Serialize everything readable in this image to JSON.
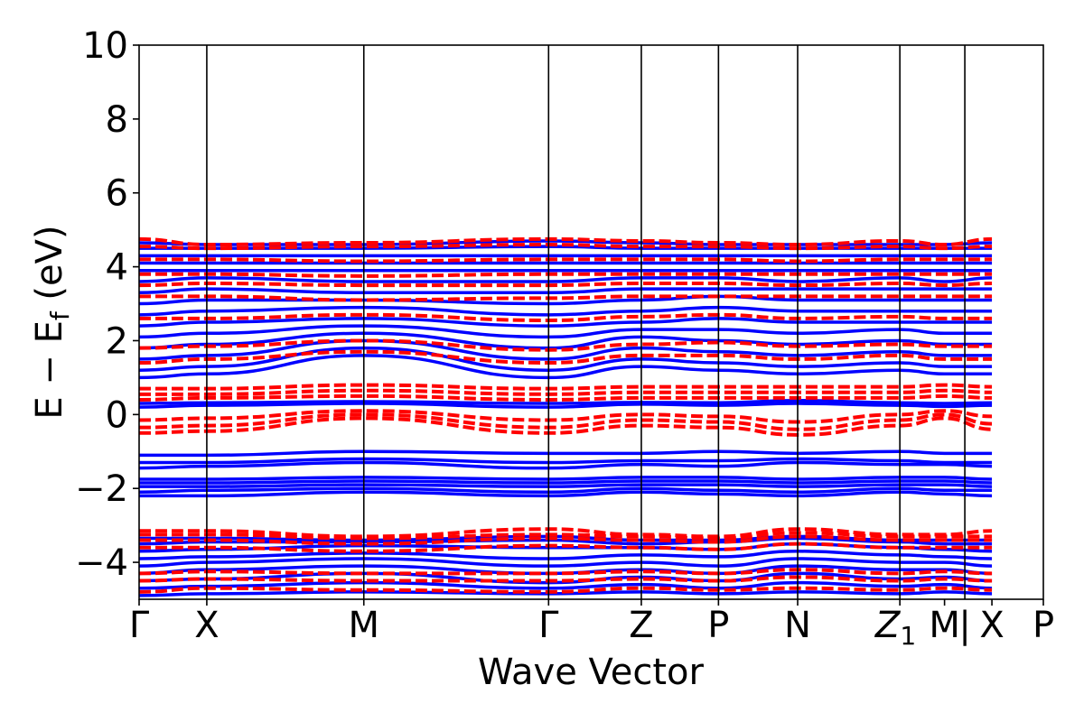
{
  "chart_data": {
    "type": "line",
    "xlabel": "Wave Vector",
    "ylabel": "E − E",
    "ylabel_sub": "f",
    "ylabel_unit": " (eV)",
    "ylim": [
      -5,
      10
    ],
    "y_ticks": [
      -4,
      -2,
      0,
      2,
      4,
      6,
      8,
      10
    ],
    "y_tick_labels": [
      "−4",
      "−2",
      "0",
      "2",
      "4",
      "6",
      "8",
      "10"
    ],
    "x_range": [
      0,
      13.36
    ],
    "k_points": [
      {
        "label": "Γ",
        "x": 0
      },
      {
        "label": "X",
        "x": 1
      },
      {
        "label": "M",
        "x": 3.32
      },
      {
        "label": "Γ",
        "x": 6.05
      },
      {
        "label": "Z",
        "x": 7.42
      },
      {
        "label": "P",
        "x": 8.56
      },
      {
        "label": "N",
        "x": 9.73
      },
      {
        "label": "Z",
        "x": 11.24,
        "sub": "1"
      },
      {
        "label": "M",
        "x": 11.9
      },
      {
        "label": "|",
        "x": 12.2
      },
      {
        "label": "X",
        "x": 12.6
      },
      {
        "label": "P",
        "x": 13.36
      }
    ],
    "vertical_lines_x": [
      1,
      3.32,
      6.05,
      7.42,
      8.56,
      9.73,
      11.24,
      12.2
    ],
    "series": [
      {
        "style": "solid",
        "color": "#0000ff",
        "bands": [
          [
            -4.9,
            -4.85,
            -4.8,
            -4.85,
            -4.8,
            -4.85,
            -4.8,
            -4.85,
            -4.8,
            -4.85
          ],
          [
            -4.7,
            -4.65,
            -4.55,
            -4.7,
            -4.6,
            -4.7,
            -4.55,
            -4.65,
            -4.6,
            -4.7
          ],
          [
            -4.5,
            -4.45,
            -4.3,
            -4.55,
            -4.4,
            -4.5,
            -4.3,
            -4.45,
            -4.4,
            -4.5
          ],
          [
            -4.3,
            -4.2,
            -4.1,
            -4.3,
            -4.2,
            -4.3,
            -4.1,
            -4.2,
            -4.2,
            -4.3
          ],
          [
            -4.1,
            -4.0,
            -3.9,
            -4.1,
            -4.0,
            -4.1,
            -3.9,
            -4.0,
            -4.0,
            -4.1
          ],
          [
            -3.9,
            -3.85,
            -3.75,
            -3.9,
            -3.8,
            -3.85,
            -3.7,
            -3.8,
            -3.85,
            -3.9
          ],
          [
            -3.7,
            -3.65,
            -3.55,
            -3.6,
            -3.6,
            -3.65,
            -3.5,
            -3.6,
            -3.65,
            -3.7
          ],
          [
            -3.5,
            -3.45,
            -3.45,
            -3.4,
            -3.5,
            -3.45,
            -3.35,
            -3.45,
            -3.5,
            -3.5
          ],
          [
            -3.35,
            -3.35,
            -3.4,
            -3.3,
            -3.4,
            -3.4,
            -3.3,
            -3.4,
            -3.4,
            -3.4
          ],
          [
            -2.2,
            -2.2,
            -2.1,
            -2.2,
            -2.1,
            -2.15,
            -2.2,
            -2.1,
            -2.15,
            -2.2
          ],
          [
            -2.1,
            -2.05,
            -2.0,
            -2.1,
            -2.0,
            -2.05,
            -2.1,
            -2.0,
            -2.05,
            -2.05
          ],
          [
            -1.95,
            -1.95,
            -1.9,
            -1.95,
            -1.9,
            -1.9,
            -1.95,
            -1.9,
            -1.9,
            -1.95
          ],
          [
            -1.85,
            -1.85,
            -1.8,
            -1.85,
            -1.8,
            -1.8,
            -1.85,
            -1.8,
            -1.8,
            -1.85
          ],
          [
            -1.75,
            -1.75,
            -1.7,
            -1.75,
            -1.7,
            -1.7,
            -1.75,
            -1.7,
            -1.7,
            -1.75
          ],
          [
            -1.45,
            -1.4,
            -1.3,
            -1.45,
            -1.35,
            -1.4,
            -1.3,
            -1.35,
            -1.35,
            -1.4
          ],
          [
            -1.3,
            -1.3,
            -1.2,
            -1.3,
            -1.25,
            -1.25,
            -1.2,
            -1.25,
            -1.3,
            -1.3
          ],
          [
            -1.1,
            -1.1,
            -1.0,
            -1.05,
            -1.05,
            -1.0,
            -1.05,
            -1.0,
            -1.05,
            -1.05
          ],
          [
            0.2,
            0.25,
            0.3,
            0.2,
            0.28,
            0.25,
            0.3,
            0.25,
            0.22,
            0.25
          ],
          [
            0.3,
            0.32,
            0.35,
            0.3,
            0.33,
            0.32,
            0.38,
            0.32,
            0.3,
            0.32
          ],
          [
            1.0,
            1.1,
            1.6,
            1.0,
            1.3,
            1.2,
            1.1,
            1.2,
            1.1,
            1.1
          ],
          [
            1.2,
            1.3,
            1.8,
            1.2,
            1.5,
            1.4,
            1.3,
            1.4,
            1.3,
            1.3
          ],
          [
            1.5,
            1.6,
            2.0,
            1.5,
            1.8,
            1.7,
            1.6,
            1.7,
            1.6,
            1.6
          ],
          [
            1.8,
            1.9,
            2.2,
            1.8,
            2.1,
            2.0,
            1.9,
            2.0,
            1.9,
            1.9
          ],
          [
            2.1,
            2.2,
            2.4,
            2.1,
            2.3,
            2.3,
            2.2,
            2.3,
            2.2,
            2.2
          ],
          [
            2.4,
            2.5,
            2.6,
            2.4,
            2.5,
            2.6,
            2.5,
            2.5,
            2.5,
            2.5
          ],
          [
            2.7,
            2.8,
            2.9,
            2.7,
            2.8,
            2.9,
            2.8,
            2.8,
            2.8,
            2.8
          ],
          [
            3.0,
            3.1,
            3.1,
            3.0,
            3.1,
            3.2,
            3.1,
            3.1,
            3.1,
            3.1
          ],
          [
            3.3,
            3.4,
            3.3,
            3.3,
            3.4,
            3.4,
            3.4,
            3.4,
            3.4,
            3.4
          ],
          [
            3.6,
            3.7,
            3.6,
            3.6,
            3.7,
            3.7,
            3.6,
            3.7,
            3.6,
            3.7
          ],
          [
            3.9,
            3.9,
            3.9,
            3.9,
            3.9,
            3.9,
            3.9,
            3.9,
            3.9,
            3.9
          ],
          [
            4.1,
            4.1,
            4.1,
            4.1,
            4.1,
            4.1,
            4.1,
            4.1,
            4.1,
            4.1
          ],
          [
            4.3,
            4.3,
            4.3,
            4.3,
            4.3,
            4.3,
            4.3,
            4.3,
            4.3,
            4.3
          ],
          [
            4.5,
            4.5,
            4.5,
            4.55,
            4.5,
            4.5,
            4.5,
            4.5,
            4.5,
            4.5
          ],
          [
            4.65,
            4.6,
            4.6,
            4.7,
            4.65,
            4.6,
            4.6,
            4.6,
            4.6,
            4.65
          ]
        ]
      },
      {
        "style": "dashed",
        "color": "#ff0000",
        "bands": [
          [
            -4.8,
            -4.7,
            -4.75,
            -4.8,
            -4.7,
            -4.75,
            -4.7,
            -4.75,
            -4.7,
            -4.75
          ],
          [
            -4.5,
            -4.45,
            -4.5,
            -4.5,
            -4.45,
            -4.5,
            -4.4,
            -4.5,
            -4.45,
            -4.5
          ],
          [
            -4.3,
            -4.25,
            -4.3,
            -4.3,
            -4.25,
            -4.3,
            -4.2,
            -4.3,
            -4.25,
            -4.3
          ],
          [
            -3.6,
            -3.6,
            -3.7,
            -3.55,
            -3.6,
            -3.65,
            -3.5,
            -3.6,
            -3.6,
            -3.6
          ],
          [
            -3.4,
            -3.4,
            -3.5,
            -3.35,
            -3.4,
            -3.45,
            -3.3,
            -3.4,
            -3.4,
            -3.4
          ],
          [
            -3.25,
            -3.25,
            -3.35,
            -3.25,
            -3.3,
            -3.35,
            -3.2,
            -3.3,
            -3.3,
            -3.3
          ],
          [
            -3.15,
            -3.15,
            -3.3,
            -3.1,
            -3.25,
            -3.3,
            -3.1,
            -3.25,
            -3.25,
            -3.15
          ],
          [
            -0.5,
            -0.45,
            -0.1,
            -0.5,
            -0.3,
            -0.35,
            -0.55,
            -0.3,
            -0.1,
            -0.4
          ],
          [
            -0.35,
            -0.3,
            0.0,
            -0.35,
            -0.15,
            -0.2,
            -0.4,
            -0.15,
            0.0,
            -0.25
          ],
          [
            -0.15,
            -0.1,
            0.1,
            -0.15,
            0.0,
            -0.05,
            -0.2,
            0.0,
            0.1,
            -0.05
          ],
          [
            0.4,
            0.45,
            0.5,
            0.4,
            0.45,
            0.45,
            0.45,
            0.45,
            0.5,
            0.45
          ],
          [
            0.55,
            0.55,
            0.65,
            0.55,
            0.6,
            0.6,
            0.6,
            0.6,
            0.65,
            0.6
          ],
          [
            0.7,
            0.7,
            0.8,
            0.7,
            0.75,
            0.75,
            0.75,
            0.75,
            0.8,
            0.75
          ],
          [
            1.4,
            1.5,
            1.7,
            1.4,
            1.6,
            1.6,
            1.5,
            1.6,
            1.5,
            1.5
          ],
          [
            1.8,
            1.85,
            2.0,
            1.75,
            1.9,
            1.95,
            1.85,
            1.9,
            1.85,
            1.85
          ],
          [
            2.6,
            2.6,
            2.7,
            2.55,
            2.65,
            2.7,
            2.6,
            2.65,
            2.6,
            2.6
          ],
          [
            3.2,
            3.2,
            3.1,
            3.15,
            3.2,
            3.2,
            3.2,
            3.2,
            3.2,
            3.2
          ],
          [
            3.5,
            3.55,
            3.5,
            3.5,
            3.55,
            3.55,
            3.5,
            3.55,
            3.5,
            3.55
          ],
          [
            3.8,
            3.8,
            3.75,
            3.8,
            3.8,
            3.8,
            3.8,
            3.8,
            3.8,
            3.8
          ],
          [
            4.2,
            4.2,
            4.15,
            4.2,
            4.2,
            4.2,
            4.15,
            4.2,
            4.2,
            4.2
          ],
          [
            4.55,
            4.5,
            4.55,
            4.6,
            4.55,
            4.55,
            4.5,
            4.55,
            4.5,
            4.55
          ],
          [
            4.75,
            4.6,
            4.65,
            4.75,
            4.7,
            4.65,
            4.6,
            4.7,
            4.6,
            4.75
          ]
        ]
      }
    ]
  }
}
